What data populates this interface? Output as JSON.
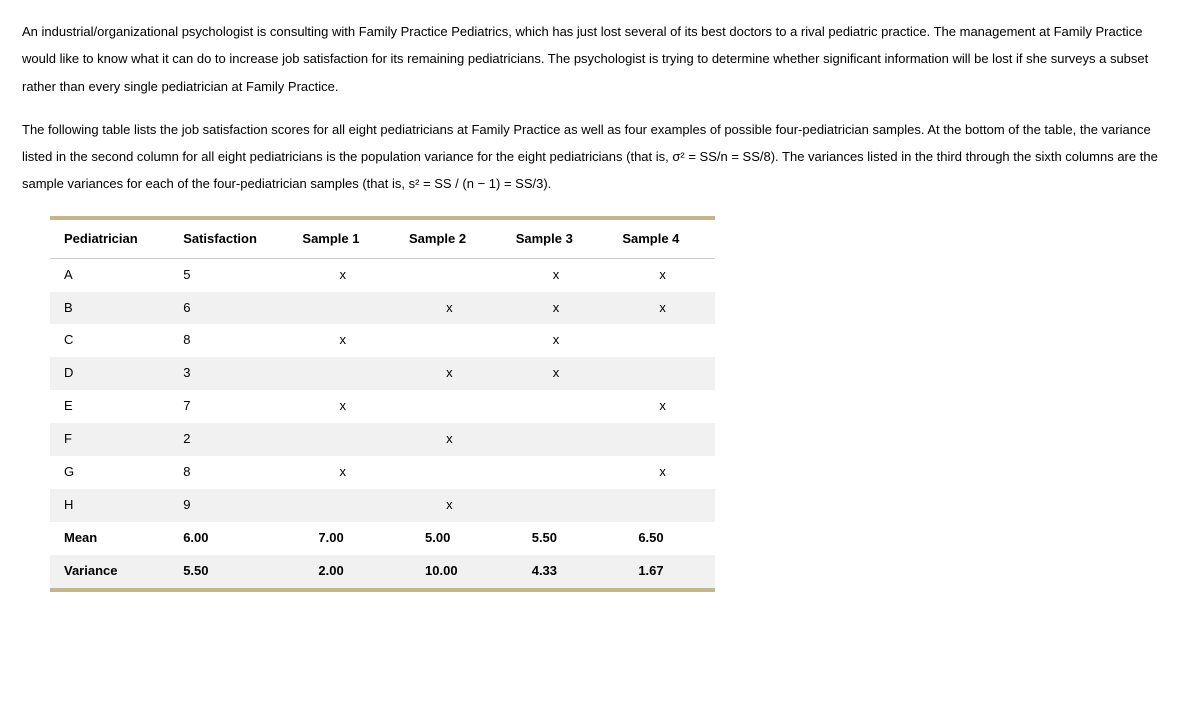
{
  "paragraphs": {
    "p1": "An industrial/organizational psychologist is consulting with Family Practice Pediatrics, which has just lost several of its best doctors to a rival pediatric practice. The management at Family Practice would like to know what it can do to increase job satisfaction for its remaining pediatricians. The psychologist is trying to determine whether significant information will be lost if she surveys a subset rather than every single pediatrician at Family Practice.",
    "p2": "The following table lists the job satisfaction scores for all eight pediatricians at Family Practice as well as four examples of possible four-pediatrician samples. At the bottom of the table, the variance listed in the second column for all eight pediatricians is the population variance for the eight pediatricians (that is, σ² = SS/n = SS/8). The variances listed in the third through the sixth columns are the sample variances for each of the four-pediatrician samples (that is, s² = SS / (n − 1) = SS/3)."
  },
  "table": {
    "headers": {
      "pediatrician": "Pediatrician",
      "satisfaction": "Satisfaction",
      "sample1": "Sample 1",
      "sample2": "Sample 2",
      "sample3": "Sample 3",
      "sample4": "Sample 4"
    },
    "mark": "x",
    "rows": [
      {
        "ped": "A",
        "sat": "5",
        "s1": true,
        "s2": false,
        "s3": true,
        "s4": true
      },
      {
        "ped": "B",
        "sat": "6",
        "s1": false,
        "s2": true,
        "s3": true,
        "s4": true
      },
      {
        "ped": "C",
        "sat": "8",
        "s1": true,
        "s2": false,
        "s3": true,
        "s4": false
      },
      {
        "ped": "D",
        "sat": "3",
        "s1": false,
        "s2": true,
        "s3": true,
        "s4": false
      },
      {
        "ped": "E",
        "sat": "7",
        "s1": true,
        "s2": false,
        "s3": false,
        "s4": true
      },
      {
        "ped": "F",
        "sat": "2",
        "s1": false,
        "s2": true,
        "s3": false,
        "s4": false
      },
      {
        "ped": "G",
        "sat": "8",
        "s1": true,
        "s2": false,
        "s3": false,
        "s4": true
      },
      {
        "ped": "H",
        "sat": "9",
        "s1": false,
        "s2": true,
        "s3": false,
        "s4": false
      }
    ],
    "summary": {
      "mean": {
        "label": "Mean",
        "sat": "6.00",
        "s1": "7.00",
        "s2": "5.00",
        "s3": "5.50",
        "s4": "6.50"
      },
      "variance": {
        "label": "Variance",
        "sat": "5.50",
        "s1": "2.00",
        "s2": "10.00",
        "s3": "4.33",
        "s4": "1.67"
      }
    }
  },
  "style": {
    "rule_color": "#c4b68a",
    "stripe_color": "#f1f1f1",
    "text_color": "#000000",
    "background_color": "#ffffff",
    "body_font_size": 13,
    "line_height": 2.1
  }
}
